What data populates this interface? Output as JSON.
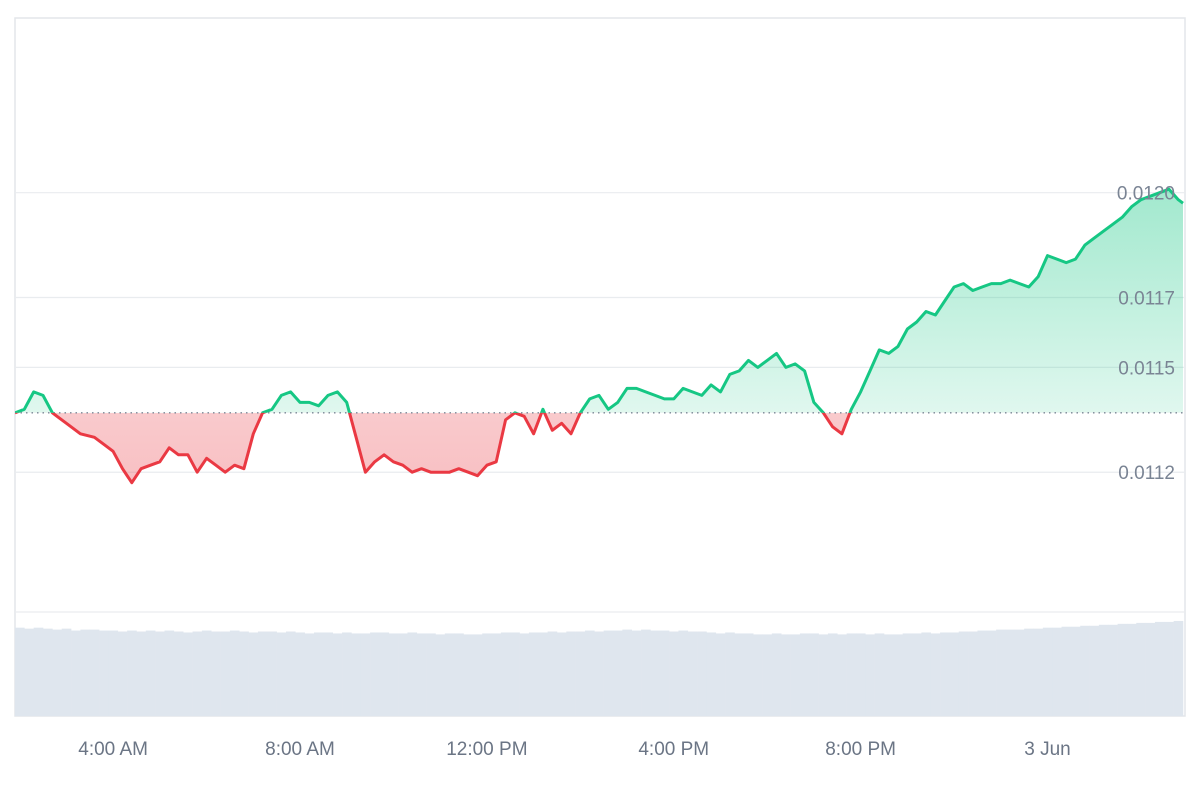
{
  "chart_data": {
    "type": "area",
    "title": "",
    "xlabel": "",
    "ylabel": "",
    "baseline": 0.01137,
    "ylim": [
      0.0108,
      0.0125
    ],
    "y_ticks": [
      {
        "value": 0.0112,
        "label": "0.0112"
      },
      {
        "value": 0.0115,
        "label": "0.0115"
      },
      {
        "value": 0.0117,
        "label": "0.0117"
      },
      {
        "value": 0.012,
        "label": "0.0120"
      }
    ],
    "x_ticks": [
      {
        "hour": 4,
        "label": "4:00 AM"
      },
      {
        "hour": 8,
        "label": "8:00 AM"
      },
      {
        "hour": 12,
        "label": "12:00 PM"
      },
      {
        "hour": 16,
        "label": "4:00 PM"
      },
      {
        "hour": 20,
        "label": "8:00 PM"
      },
      {
        "hour": 24,
        "label": "3 Jun"
      }
    ],
    "x_range_hours": [
      1.9,
      26.9
    ],
    "series": [
      {
        "x_hours": [
          1.9,
          2.1,
          2.3,
          2.5,
          2.7,
          2.8,
          3.0,
          3.3,
          3.6,
          3.8,
          4.0,
          4.2,
          4.4,
          4.6,
          4.8,
          5.0,
          5.2,
          5.4,
          5.6,
          5.8,
          6.0,
          6.2,
          6.4,
          6.6,
          6.8,
          7.0,
          7.2,
          7.4,
          7.6,
          7.8,
          8.0,
          8.2,
          8.4,
          8.6,
          8.8,
          9.0,
          9.2,
          9.4,
          9.6,
          9.8,
          10.0,
          10.2,
          10.4,
          10.6,
          10.8,
          11.0,
          11.2,
          11.4,
          11.6,
          11.8,
          12.0,
          12.2,
          12.4,
          12.6,
          12.8,
          13.0,
          13.2,
          13.4,
          13.6,
          13.8,
          14.0,
          14.2,
          14.4,
          14.6,
          14.8,
          15.0,
          15.2,
          15.4,
          15.6,
          15.8,
          16.0,
          16.2,
          16.4,
          16.6,
          16.8,
          17.0,
          17.2,
          17.4,
          17.6,
          17.8,
          18.0,
          18.2,
          18.4,
          18.6,
          18.8,
          19.0,
          19.2,
          19.4,
          19.6,
          19.8,
          20.0,
          20.2,
          20.4,
          20.6,
          20.8,
          21.0,
          21.2,
          21.4,
          21.6,
          21.8,
          22.0,
          22.2,
          22.4,
          22.6,
          22.8,
          23.0,
          23.2,
          23.4,
          23.6,
          23.8,
          24.0,
          24.2,
          24.4,
          24.6,
          24.8,
          25.0,
          25.2,
          25.4,
          25.6,
          25.8,
          26.0,
          26.2,
          26.4,
          26.6,
          26.8,
          26.9
        ],
        "y_values": [
          0.01137,
          0.01138,
          0.01143,
          0.01142,
          0.01137,
          0.01136,
          0.01134,
          0.01131,
          0.0113,
          0.01128,
          0.01126,
          0.01121,
          0.01117,
          0.01121,
          0.01122,
          0.01123,
          0.01127,
          0.01125,
          0.01125,
          0.0112,
          0.01124,
          0.01122,
          0.0112,
          0.01122,
          0.01121,
          0.01131,
          0.01137,
          0.01138,
          0.01142,
          0.01143,
          0.0114,
          0.0114,
          0.01139,
          0.01142,
          0.01143,
          0.0114,
          0.0113,
          0.0112,
          0.01123,
          0.01125,
          0.01123,
          0.01122,
          0.0112,
          0.01121,
          0.0112,
          0.0112,
          0.0112,
          0.01121,
          0.0112,
          0.01119,
          0.01122,
          0.01123,
          0.01135,
          0.01137,
          0.01136,
          0.01131,
          0.01138,
          0.01132,
          0.01134,
          0.01131,
          0.01137,
          0.01141,
          0.01142,
          0.01138,
          0.0114,
          0.01144,
          0.01144,
          0.01143,
          0.01142,
          0.01141,
          0.01141,
          0.01144,
          0.01143,
          0.01142,
          0.01145,
          0.01143,
          0.01148,
          0.01149,
          0.01152,
          0.0115,
          0.01152,
          0.01154,
          0.0115,
          0.01151,
          0.01149,
          0.0114,
          0.01137,
          0.01133,
          0.01131,
          0.01138,
          0.01143,
          0.01149,
          0.01155,
          0.01154,
          0.01156,
          0.01161,
          0.01163,
          0.01166,
          0.01165,
          0.01169,
          0.01173,
          0.01174,
          0.01172,
          0.01173,
          0.01174,
          0.01174,
          0.01175,
          0.01174,
          0.01173,
          0.01176,
          0.01182,
          0.01181,
          0.0118,
          0.01181,
          0.01185,
          0.01187,
          0.01189,
          0.01191,
          0.01193,
          0.01196,
          0.01198,
          0.01199,
          0.012,
          0.01201,
          0.01198,
          0.01197
        ]
      }
    ],
    "volume": {
      "values": [
        0.92,
        0.91,
        0.92,
        0.91,
        0.9,
        0.91,
        0.89,
        0.9,
        0.9,
        0.89,
        0.89,
        0.88,
        0.89,
        0.88,
        0.89,
        0.88,
        0.89,
        0.88,
        0.87,
        0.88,
        0.89,
        0.88,
        0.88,
        0.89,
        0.88,
        0.87,
        0.88,
        0.88,
        0.87,
        0.88,
        0.87,
        0.86,
        0.87,
        0.87,
        0.86,
        0.87,
        0.86,
        0.86,
        0.87,
        0.87,
        0.86,
        0.86,
        0.87,
        0.86,
        0.86,
        0.85,
        0.86,
        0.86,
        0.85,
        0.85,
        0.86,
        0.86,
        0.87,
        0.87,
        0.86,
        0.87,
        0.87,
        0.88,
        0.87,
        0.88,
        0.88,
        0.89,
        0.88,
        0.89,
        0.89,
        0.9,
        0.89,
        0.9,
        0.89,
        0.89,
        0.88,
        0.89,
        0.88,
        0.88,
        0.87,
        0.86,
        0.87,
        0.86,
        0.86,
        0.85,
        0.85,
        0.86,
        0.85,
        0.85,
        0.86,
        0.86,
        0.85,
        0.86,
        0.85,
        0.86,
        0.86,
        0.85,
        0.86,
        0.85,
        0.85,
        0.86,
        0.86,
        0.87,
        0.86,
        0.87,
        0.87,
        0.88,
        0.88,
        0.89,
        0.89,
        0.9,
        0.9,
        0.9,
        0.91,
        0.91,
        0.92,
        0.92,
        0.93,
        0.93,
        0.94,
        0.94,
        0.95,
        0.95,
        0.96,
        0.96,
        0.97,
        0.97,
        0.98,
        0.98,
        0.99
      ]
    },
    "colors": {
      "up": "#16c784",
      "down": "#ea3943",
      "up_fill": "#16c784",
      "down_fill": "#ea3943",
      "volume": "#dfe6ee",
      "baseline": "#7a8494"
    },
    "grid": true,
    "legend": "none"
  }
}
